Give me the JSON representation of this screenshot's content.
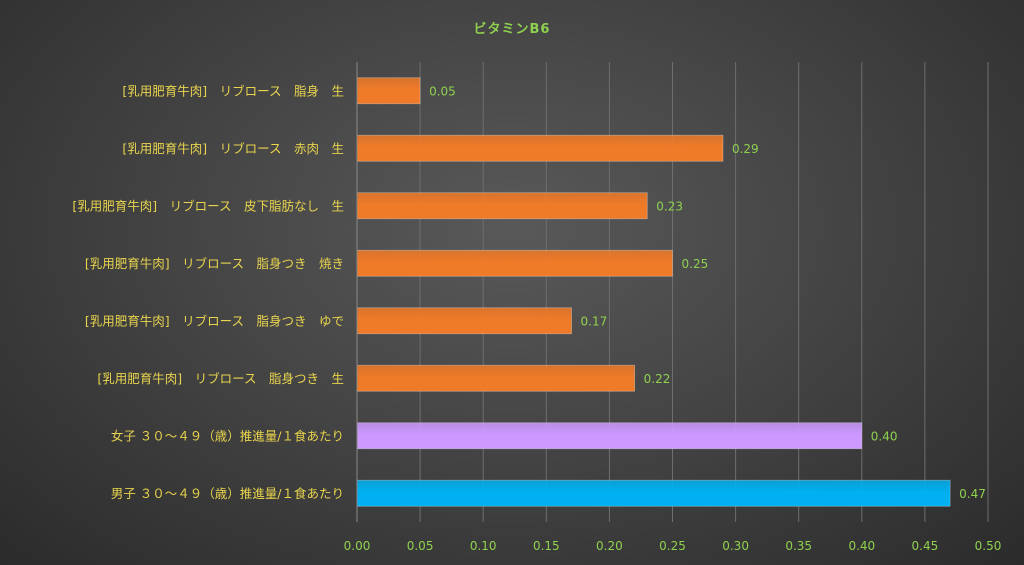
{
  "chart_data": {
    "type": "bar",
    "orientation": "horizontal",
    "title": "ビタミンB6",
    "categories": [
      "[乳用肥育牛肉]　リブロース　脂身　生",
      "[乳用肥育牛肉]　リブロース　赤肉　生",
      "[乳用肥育牛肉]　リブロース　皮下脂肪なし　生",
      "[乳用肥育牛肉]　リブロース　脂身つき　焼き",
      "[乳用肥育牛肉]　リブロース　脂身つき　ゆで",
      "[乳用肥育牛肉]　リブロース　脂身つき　生",
      "女子 ３０～４９（歳）推進量/１食あたり",
      "男子 ３０～４９（歳）推進量/１食あたり"
    ],
    "values": [
      0.05,
      0.29,
      0.23,
      0.25,
      0.17,
      0.22,
      0.4,
      0.47
    ],
    "value_labels": [
      "0.05",
      "0.29",
      "0.23",
      "0.25",
      "0.17",
      "0.22",
      "0.40",
      "0.47"
    ],
    "bar_colors": [
      "#ef7a28",
      "#ef7a28",
      "#ef7a28",
      "#ef7a28",
      "#ef7a28",
      "#ef7a28",
      "#cc99ff",
      "#00b0f0"
    ],
    "xlim": [
      0,
      0.5
    ],
    "xticks": [
      "0.00",
      "0.05",
      "0.10",
      "0.15",
      "0.20",
      "0.25",
      "0.30",
      "0.35",
      "0.40",
      "0.45",
      "0.50"
    ],
    "grid": true,
    "legend": "none"
  }
}
